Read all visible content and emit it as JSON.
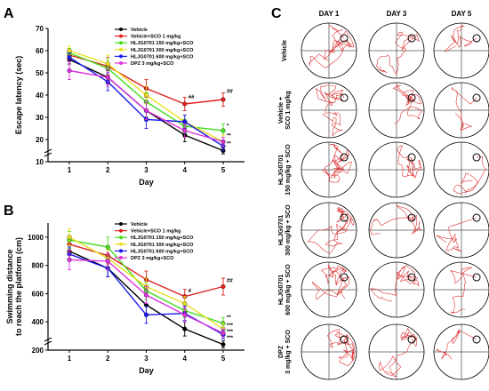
{
  "panels": {
    "a": "A",
    "b": "B",
    "c": "C"
  },
  "colors": {
    "Vehicle": "#000000",
    "Vehicle+SCO 1 mg/kg": "#e02020",
    "HLJG0701 150 mg/kg+SCO": "#44dd22",
    "HLJG0701 300 mg/kg+SCO": "#e8e020",
    "HLJG0701 600 mg/kg+SCO": "#1a1aee",
    "DPZ 3 mg/kg+SCO": "#dd33dd",
    "path": "#dd3333"
  },
  "chart_data": [
    {
      "type": "line",
      "panel": "A",
      "ylabel": "Escape latency (sec)",
      "xlabel": "Day",
      "x": [
        1,
        2,
        3,
        4,
        5
      ],
      "ylim": [
        10,
        70
      ],
      "yticks": [
        10,
        20,
        30,
        40,
        50,
        60,
        70
      ],
      "axis_break": true,
      "legend": "top-right",
      "series": [
        {
          "name": "Vehicle",
          "values": [
            56,
            48,
            33,
            22,
            15
          ],
          "err": [
            2,
            3,
            3,
            3,
            1.5
          ]
        },
        {
          "name": "Vehicle+SCO 1 mg/kg",
          "values": [
            58,
            53,
            43,
            36,
            38
          ],
          "err": [
            2,
            4,
            4,
            3,
            3
          ]
        },
        {
          "name": "HLJG0701 150 mg/kg+SCO",
          "values": [
            59,
            52,
            37,
            26,
            24
          ],
          "err": [
            2,
            4,
            4,
            3,
            3
          ]
        },
        {
          "name": "HLJG0701 300 mg/kg+SCO",
          "values": [
            60,
            54,
            40,
            28,
            19
          ],
          "err": [
            2,
            4,
            4,
            3,
            3
          ]
        },
        {
          "name": "HLJG0701 600 mg/kg+SCO",
          "values": [
            57,
            46,
            29,
            28,
            17
          ],
          "err": [
            2,
            4,
            4,
            3,
            2
          ]
        },
        {
          "name": "DPZ 3 mg/kg+SCO",
          "values": [
            51,
            48,
            33,
            24,
            19
          ],
          "err": [
            4,
            4,
            4,
            3,
            2
          ]
        }
      ],
      "annotations": [
        {
          "x": 4,
          "y": 38.5,
          "text": "##"
        },
        {
          "x": 5,
          "y": 41,
          "text": "##"
        },
        {
          "x": 5,
          "y": 25.5,
          "text": "*"
        },
        {
          "x": 5,
          "y": 21,
          "text": "**"
        },
        {
          "x": 5,
          "y": 17.5,
          "text": "**"
        }
      ]
    },
    {
      "type": "line",
      "panel": "B",
      "ylabel": "Swimming distance\nto reach the platform (cm)",
      "xlabel": "Day",
      "x": [
        1,
        2,
        3,
        4,
        5
      ],
      "ylim": [
        200,
        1100
      ],
      "yticks": [
        200,
        400,
        600,
        800,
        1000
      ],
      "axis_break": true,
      "legend": "top-right",
      "series": [
        {
          "name": "Vehicle",
          "values": [
            900,
            780,
            520,
            350,
            240
          ],
          "err": [
            50,
            60,
            60,
            50,
            25
          ]
        },
        {
          "name": "Vehicle+SCO 1 mg/kg",
          "values": [
            950,
            870,
            700,
            580,
            650
          ],
          "err": [
            50,
            60,
            60,
            50,
            60
          ]
        },
        {
          "name": "HLJG0701 150 mg/kg+SCO",
          "values": [
            980,
            930,
            620,
            480,
            390
          ],
          "err": [
            60,
            70,
            60,
            50,
            40
          ]
        },
        {
          "name": "HLJG0701 300 mg/kg+SCO",
          "values": [
            1000,
            850,
            650,
            530,
            350
          ],
          "err": [
            60,
            60,
            60,
            50,
            40
          ]
        },
        {
          "name": "HLJG0701 600 mg/kg+SCO",
          "values": [
            880,
            780,
            450,
            460,
            310
          ],
          "err": [
            50,
            60,
            60,
            50,
            30
          ]
        },
        {
          "name": "DPZ 3 mg/kg+SCO",
          "values": [
            840,
            830,
            590,
            450,
            320
          ],
          "err": [
            70,
            60,
            60,
            50,
            30
          ]
        }
      ],
      "annotations": [
        {
          "x": 4,
          "y": 610,
          "text": "#"
        },
        {
          "x": 5,
          "y": 680,
          "text": "##"
        },
        {
          "x": 5,
          "y": 420,
          "text": "**"
        },
        {
          "x": 5,
          "y": 365,
          "text": "***"
        },
        {
          "x": 5,
          "y": 320,
          "text": "***"
        },
        {
          "x": 5,
          "y": 275,
          "text": "***"
        }
      ]
    }
  ],
  "trajectories": {
    "columns": [
      "DAY 1",
      "DAY 3",
      "DAY 5"
    ],
    "rows": [
      "Vehicle",
      "Vehicle +\nSCO 1 mg/kg",
      "HLJG0701\n150 mg/kg + SCO",
      "HLJG0701\n300 mg/kg + SCO",
      "HLJG0701\n600 mg/kg + SCO",
      "DPZ\n3 mg/kg + SCO"
    ],
    "platform": [
      0.55,
      -0.45
    ]
  }
}
